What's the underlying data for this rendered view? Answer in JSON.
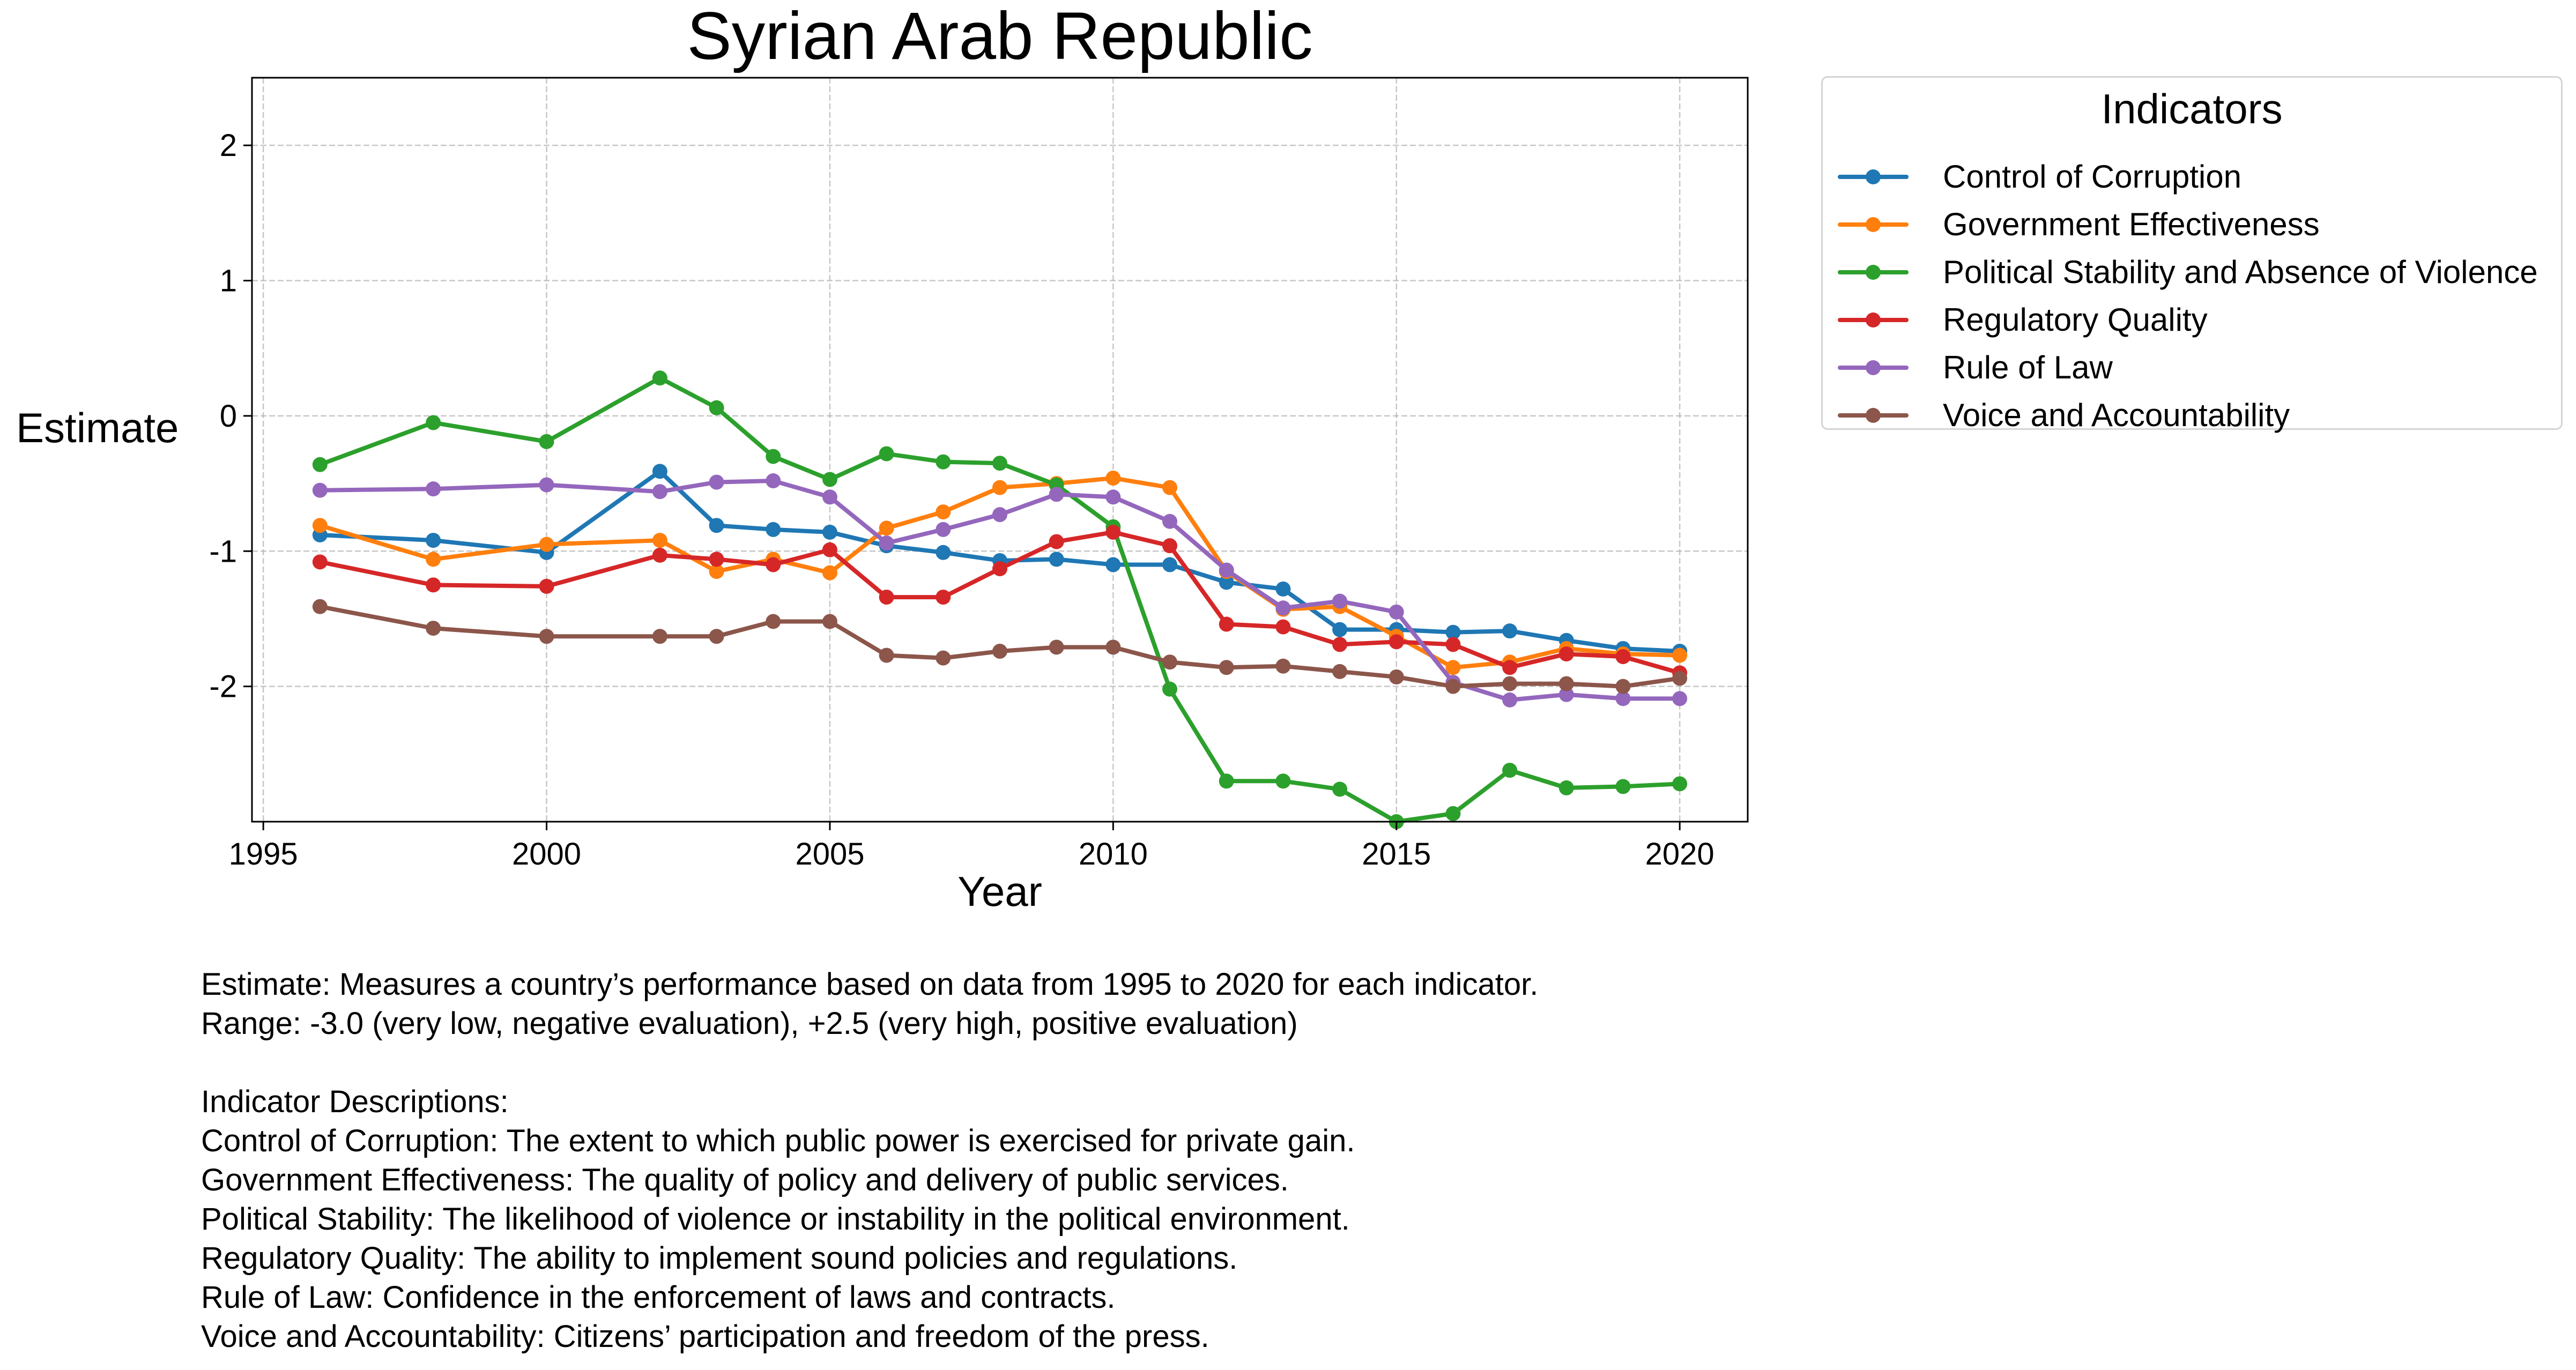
{
  "chart_data": {
    "type": "line",
    "title": "Syrian Arab Republic",
    "xlabel": "Year",
    "ylabel": "Estimate",
    "xlim": [
      1994.8,
      2021.2
    ],
    "ylim": [
      -3.0,
      2.5
    ],
    "xticks": [
      1995,
      2000,
      2005,
      2010,
      2015,
      2020
    ],
    "yticks": [
      -2,
      -1,
      0,
      1,
      2
    ],
    "grid": true,
    "legend": {
      "title": "Indicators",
      "placement": "outside-top-right"
    },
    "x": [
      1996,
      1998,
      2000,
      2002,
      2003,
      2004,
      2005,
      2006,
      2007,
      2008,
      2009,
      2010,
      2011,
      2012,
      2013,
      2014,
      2015,
      2016,
      2017,
      2018,
      2019,
      2020
    ],
    "series": [
      {
        "name": "Control of Corruption",
        "color": "#1f77b4",
        "values": [
          -0.88,
          -0.92,
          -1.01,
          -0.41,
          -0.81,
          -0.84,
          -0.86,
          -0.96,
          -1.01,
          -1.07,
          -1.06,
          -1.1,
          -1.1,
          -1.23,
          -1.28,
          -1.58,
          -1.58,
          -1.6,
          -1.59,
          -1.66,
          -1.72,
          -1.74
        ]
      },
      {
        "name": "Government Effectiveness",
        "color": "#ff7f0e",
        "values": [
          -0.81,
          -1.06,
          -0.95,
          -0.92,
          -1.15,
          -1.06,
          -1.16,
          -0.83,
          -0.71,
          -0.53,
          -0.5,
          -0.46,
          -0.53,
          -1.15,
          -1.43,
          -1.41,
          -1.63,
          -1.86,
          -1.82,
          -1.72,
          -1.76,
          -1.77
        ]
      },
      {
        "name": "Political Stability and Absence of Violence",
        "color": "#2ca02c",
        "values": [
          -0.36,
          -0.05,
          -0.19,
          0.28,
          0.06,
          -0.3,
          -0.47,
          -0.28,
          -0.34,
          -0.35,
          -0.51,
          -0.82,
          -2.02,
          -2.7,
          -2.7,
          -2.76,
          -3.0,
          -2.94,
          -2.62,
          -2.75,
          -2.74,
          -2.72
        ]
      },
      {
        "name": "Regulatory Quality",
        "color": "#d62728",
        "values": [
          -1.08,
          -1.25,
          -1.26,
          -1.03,
          -1.06,
          -1.1,
          -0.99,
          -1.34,
          -1.34,
          -1.13,
          -0.93,
          -0.86,
          -0.96,
          -1.54,
          -1.56,
          -1.69,
          -1.67,
          -1.69,
          -1.86,
          -1.76,
          -1.78,
          -1.9
        ]
      },
      {
        "name": "Rule of Law",
        "color": "#9467bd",
        "values": [
          -0.55,
          -0.54,
          -0.51,
          -0.56,
          -0.49,
          -0.48,
          -0.6,
          -0.94,
          -0.84,
          -0.73,
          -0.58,
          -0.6,
          -0.78,
          -1.14,
          -1.42,
          -1.37,
          -1.45,
          -1.97,
          -2.1,
          -2.06,
          -2.09,
          -2.09
        ]
      },
      {
        "name": "Voice and Accountability",
        "color": "#8c564b",
        "values": [
          -1.41,
          -1.57,
          -1.63,
          -1.63,
          -1.63,
          -1.52,
          -1.52,
          -1.77,
          -1.79,
          -1.74,
          -1.71,
          -1.71,
          -1.82,
          -1.86,
          -1.85,
          -1.89,
          -1.93,
          -2.0,
          -1.98,
          -1.98,
          -2.0,
          -1.94
        ]
      }
    ]
  },
  "notes": {
    "line1": "Estimate: Measures a country’s performance based on data from 1995 to 2020 for each indicator.",
    "line2": "Range: -3.0 (very low, negative evaluation), +2.5 (very high, positive evaluation)",
    "heading": "Indicator Descriptions:",
    "descriptions": [
      "Control of Corruption: The extent to which public power is exercised for private gain.",
      "Government Effectiveness: The quality of policy and delivery of public services.",
      "Political Stability: The likelihood of violence or instability in the political environment.",
      "Regulatory Quality: The ability to implement sound policies and regulations.",
      "Rule of Law: Confidence in the enforcement of laws and contracts.",
      "Voice and Accountability: Citizens’ participation and freedom of the press."
    ]
  }
}
